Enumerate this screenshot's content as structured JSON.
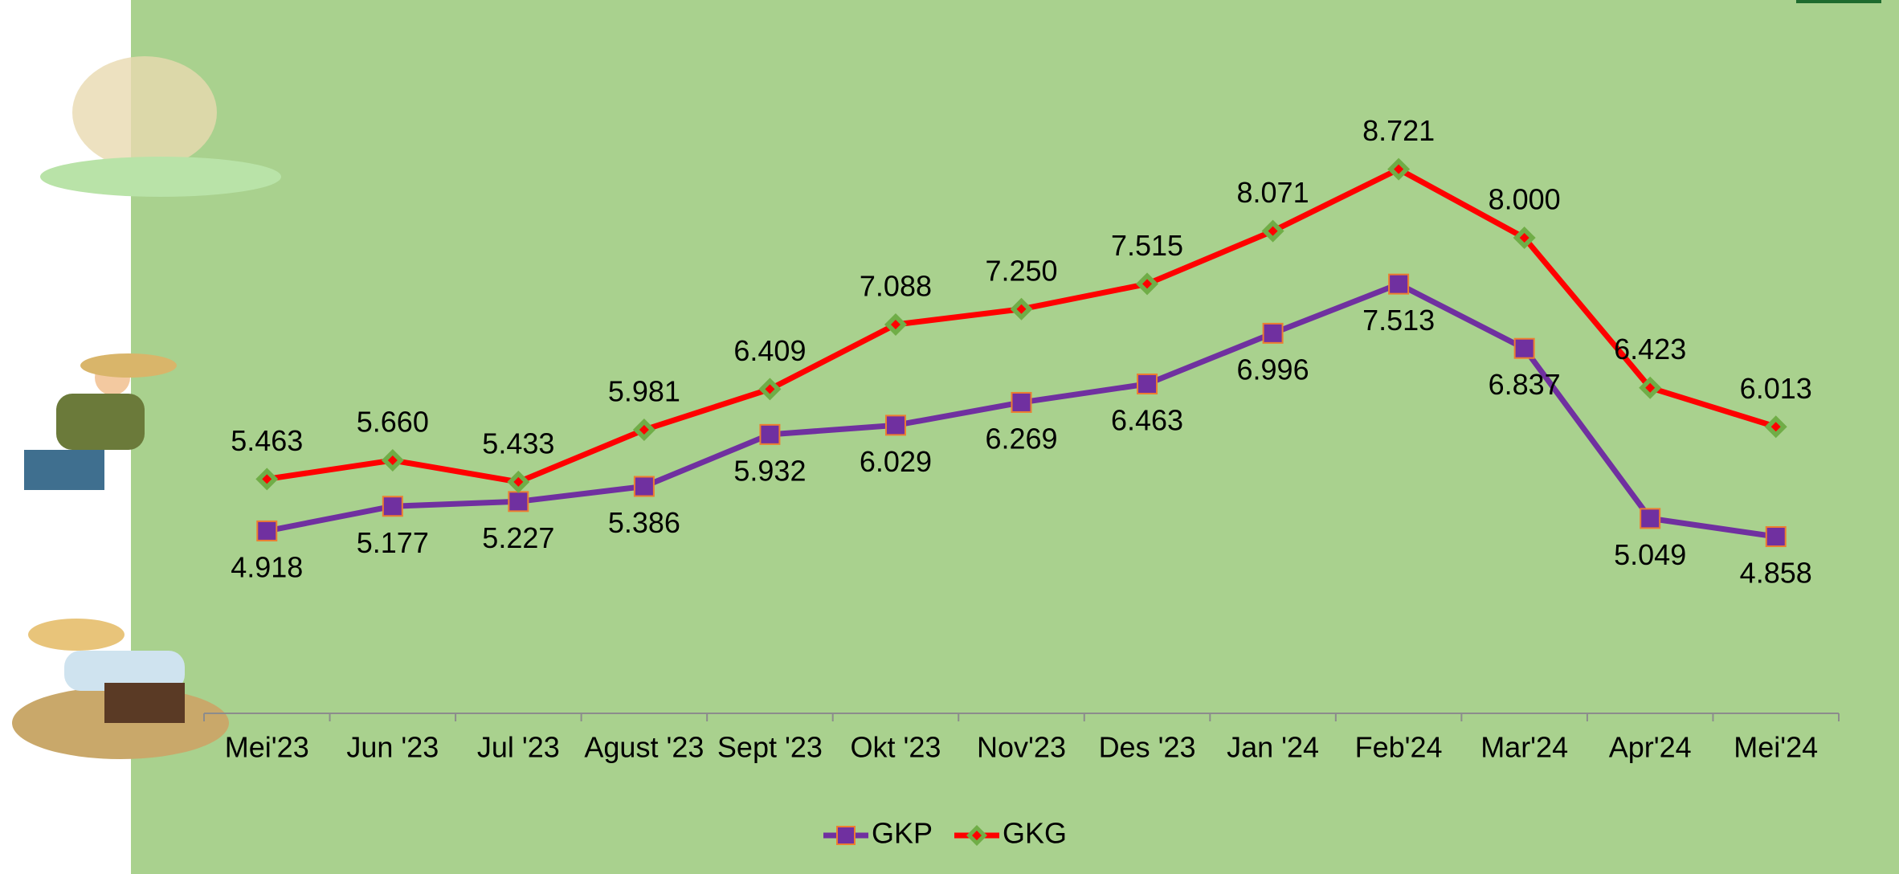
{
  "chart_data": {
    "type": "line",
    "categories": [
      "Mei'23",
      "Jun '23",
      "Jul '23",
      "Agust '23",
      "Sept '23",
      "Okt '23",
      "Nov'23",
      "Des '23",
      "Jan '24",
      "Feb'24",
      "Mar'24",
      "Apr'24",
      "Mei'24"
    ],
    "series": [
      {
        "name": "GKP",
        "color": "#7030a0",
        "marker": "square",
        "values": [
          4.918,
          5.177,
          5.227,
          5.386,
          5.932,
          6.029,
          6.269,
          6.463,
          6.996,
          7.513,
          6.837,
          5.049,
          4.858
        ],
        "value_labels": [
          "4.918",
          "5.177",
          "5.227",
          "5.386",
          "5.932",
          "6.029",
          "6.269",
          "6.463",
          "6.996",
          "7.513",
          "6.837",
          "5.049",
          "4.858"
        ]
      },
      {
        "name": "GKG",
        "color": "#ff0000",
        "marker": "diamond",
        "values": [
          5.463,
          5.66,
          5.433,
          5.981,
          6.409,
          7.088,
          7.25,
          7.515,
          8.071,
          8.721,
          8.0,
          6.423,
          6.013
        ],
        "value_labels": [
          "5.463",
          "5.660",
          "5.433",
          "5.981",
          "6.409",
          "7.088",
          "7.250",
          "7.515",
          "8.071",
          "8.721",
          "8.000",
          "6.423",
          "6.013"
        ]
      }
    ],
    "ylim": [
      3,
      10.5
    ],
    "legend": "bottom"
  }
}
